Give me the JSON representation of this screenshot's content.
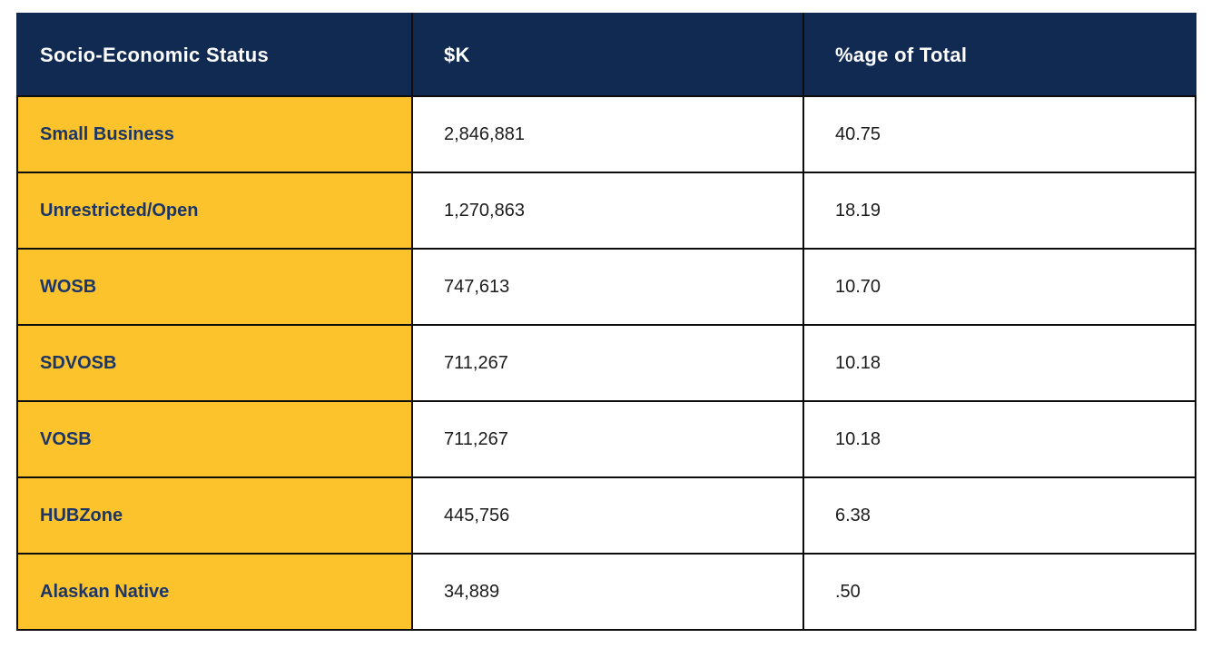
{
  "colors": {
    "header_bg": "#112a52",
    "label_bg": "#fdc32d",
    "label_text": "#1b3666",
    "grid": "#0d0d0d"
  },
  "table": {
    "columns": [
      {
        "label": "Socio-Economic Status"
      },
      {
        "label": "$K"
      },
      {
        "label": "%age of Total"
      }
    ],
    "rows": [
      {
        "label": "Small Business",
        "k": "2,846,881",
        "pct": "40.75"
      },
      {
        "label": "Unrestricted/Open",
        "k": "1,270,863",
        "pct": "18.19"
      },
      {
        "label": "WOSB",
        "k": "747,613",
        "pct": "10.70"
      },
      {
        "label": "SDVOSB",
        "k": "711,267",
        "pct": "10.18"
      },
      {
        "label": "VOSB",
        "k": "711,267",
        "pct": "10.18"
      },
      {
        "label": "HUBZone",
        "k": "445,756",
        "pct": "6.38"
      },
      {
        "label": "Alaskan Native",
        "k": "34,889",
        "pct": ".50"
      }
    ]
  },
  "chart_data": {
    "type": "table",
    "title": "",
    "columns": [
      "Socio-Economic Status",
      "$K",
      "%age of Total"
    ],
    "categories": [
      "Small Business",
      "Unrestricted/Open",
      "WOSB",
      "SDVOSB",
      "VOSB",
      "HUBZone",
      "Alaskan Native"
    ],
    "series": [
      {
        "name": "$K",
        "values": [
          2846881,
          1270863,
          747613,
          711267,
          711267,
          445756,
          34889
        ]
      },
      {
        "name": "%age of Total",
        "values": [
          40.75,
          18.19,
          10.7,
          10.18,
          10.18,
          6.38,
          0.5
        ]
      }
    ]
  }
}
